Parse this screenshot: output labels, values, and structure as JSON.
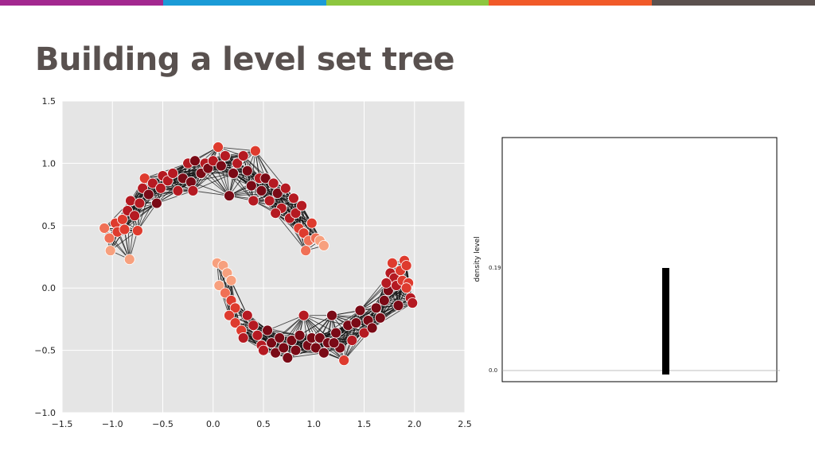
{
  "slide": {
    "title": "Building a level set tree",
    "bar_colors": [
      "#a3288f",
      "#1b9bd7",
      "#8dc63f",
      "#f15a29",
      "#5b514e"
    ]
  },
  "chart_data": [
    {
      "type": "scatter",
      "title": "",
      "xlabel": "",
      "ylabel": "",
      "xlim": [
        -1.5,
        2.5
      ],
      "ylim": [
        -1.0,
        1.5
      ],
      "xticks": [
        "−1.5",
        "−1.0",
        "−0.5",
        "0.0",
        "0.5",
        "1.0",
        "1.5",
        "2.0",
        "2.5"
      ],
      "yticks": [
        "1.5",
        "1.0",
        "0.5",
        "0.0",
        "−0.5",
        "−1.0"
      ],
      "xtick_values": [
        -1.5,
        -1.0,
        -0.5,
        0.0,
        0.5,
        1.0,
        1.5,
        2.0,
        2.5
      ],
      "ytick_values": [
        1.5,
        1.0,
        0.5,
        0.0,
        -0.5,
        -1.0
      ],
      "grid": true,
      "background": "#e5e5e5",
      "edges": "k-nearest-neighbor similarity graph connecting nearby points",
      "color_scale": [
        "#f7a07e",
        "#f07056",
        "#de3b2e",
        "#b51a22",
        "#7a0a16"
      ],
      "points": [
        [
          -1.08,
          0.48
        ],
        [
          -1.03,
          0.4
        ],
        [
          -1.02,
          0.3
        ],
        [
          -0.97,
          0.52
        ],
        [
          -0.95,
          0.45
        ],
        [
          -0.9,
          0.55
        ],
        [
          -0.88,
          0.47
        ],
        [
          -0.85,
          0.62
        ],
        [
          -0.83,
          0.23
        ],
        [
          -0.82,
          0.7
        ],
        [
          -0.78,
          0.58
        ],
        [
          -0.75,
          0.46
        ],
        [
          -0.73,
          0.68
        ],
        [
          -0.7,
          0.8
        ],
        [
          -0.68,
          0.88
        ],
        [
          -0.64,
          0.75
        ],
        [
          -0.6,
          0.84
        ],
        [
          -0.56,
          0.68
        ],
        [
          -0.52,
          0.8
        ],
        [
          -0.5,
          0.9
        ],
        [
          -0.45,
          0.86
        ],
        [
          -0.4,
          0.92
        ],
        [
          -0.35,
          0.78
        ],
        [
          -0.3,
          0.88
        ],
        [
          -0.25,
          1.0
        ],
        [
          -0.22,
          0.85
        ],
        [
          -0.18,
          1.02
        ],
        [
          -0.12,
          0.92
        ],
        [
          -0.08,
          1.0
        ],
        [
          -0.05,
          0.96
        ],
        [
          0.0,
          1.02
        ],
        [
          0.05,
          1.13
        ],
        [
          0.08,
          0.98
        ],
        [
          0.12,
          1.06
        ],
        [
          0.16,
          0.74
        ],
        [
          0.2,
          0.92
        ],
        [
          0.24,
          1.0
        ],
        [
          0.3,
          1.06
        ],
        [
          0.34,
          0.94
        ],
        [
          0.38,
          0.82
        ],
        [
          0.42,
          1.1
        ],
        [
          0.46,
          0.88
        ],
        [
          0.48,
          0.78
        ],
        [
          0.52,
          0.88
        ],
        [
          0.56,
          0.7
        ],
        [
          0.6,
          0.84
        ],
        [
          0.64,
          0.76
        ],
        [
          0.68,
          0.64
        ],
        [
          0.72,
          0.8
        ],
        [
          0.76,
          0.56
        ],
        [
          0.8,
          0.72
        ],
        [
          0.82,
          0.6
        ],
        [
          0.85,
          0.48
        ],
        [
          0.88,
          0.66
        ],
        [
          0.9,
          0.44
        ],
        [
          0.92,
          0.3
        ],
        [
          0.95,
          0.38
        ],
        [
          0.98,
          0.52
        ],
        [
          1.02,
          0.4
        ],
        [
          1.06,
          0.38
        ],
        [
          1.1,
          0.34
        ],
        [
          0.62,
          0.6
        ],
        [
          0.4,
          0.7
        ],
        [
          -0.2,
          0.78
        ],
        [
          0.04,
          0.2
        ],
        [
          0.1,
          0.18
        ],
        [
          0.14,
          0.12
        ],
        [
          0.18,
          0.06
        ],
        [
          0.06,
          0.02
        ],
        [
          0.12,
          -0.04
        ],
        [
          0.18,
          -0.1
        ],
        [
          0.22,
          -0.16
        ],
        [
          0.16,
          -0.22
        ],
        [
          0.22,
          -0.28
        ],
        [
          0.28,
          -0.34
        ],
        [
          0.34,
          -0.22
        ],
        [
          0.4,
          -0.3
        ],
        [
          0.44,
          -0.38
        ],
        [
          0.48,
          -0.46
        ],
        [
          0.54,
          -0.34
        ],
        [
          0.58,
          -0.44
        ],
        [
          0.62,
          -0.52
        ],
        [
          0.66,
          -0.4
        ],
        [
          0.7,
          -0.48
        ],
        [
          0.74,
          -0.56
        ],
        [
          0.78,
          -0.42
        ],
        [
          0.82,
          -0.5
        ],
        [
          0.86,
          -0.38
        ],
        [
          0.9,
          -0.22
        ],
        [
          0.94,
          -0.46
        ],
        [
          0.98,
          -0.4
        ],
        [
          1.02,
          -0.48
        ],
        [
          1.06,
          -0.4
        ],
        [
          1.1,
          -0.52
        ],
        [
          1.14,
          -0.44
        ],
        [
          1.18,
          -0.22
        ],
        [
          1.22,
          -0.36
        ],
        [
          1.26,
          -0.48
        ],
        [
          1.3,
          -0.58
        ],
        [
          1.34,
          -0.3
        ],
        [
          1.38,
          -0.42
        ],
        [
          1.42,
          -0.28
        ],
        [
          1.46,
          -0.18
        ],
        [
          1.5,
          -0.36
        ],
        [
          1.54,
          -0.26
        ],
        [
          1.58,
          -0.32
        ],
        [
          1.62,
          -0.16
        ],
        [
          1.66,
          -0.24
        ],
        [
          1.7,
          -0.1
        ],
        [
          1.74,
          -0.02
        ],
        [
          1.76,
          0.12
        ],
        [
          1.78,
          0.2
        ],
        [
          1.8,
          0.08
        ],
        [
          1.82,
          0.02
        ],
        [
          1.86,
          0.14
        ],
        [
          1.88,
          0.06
        ],
        [
          1.9,
          0.22
        ],
        [
          1.92,
          0.18
        ],
        [
          1.94,
          0.04
        ],
        [
          1.96,
          -0.08
        ],
        [
          1.98,
          -0.12
        ],
        [
          1.84,
          -0.14
        ],
        [
          1.72,
          0.04
        ],
        [
          1.92,
          0.0
        ],
        [
          0.3,
          -0.4
        ],
        [
          0.5,
          -0.5
        ],
        [
          1.2,
          -0.44
        ]
      ]
    },
    {
      "type": "bar",
      "title": "",
      "xlabel": "",
      "ylabel": "density level",
      "ylim": [
        0.0,
        0.19
      ],
      "yticks": [
        "0.0",
        "0.19"
      ],
      "ytick_values": [
        0.0,
        0.19
      ],
      "values": [
        0.19
      ]
    }
  ]
}
